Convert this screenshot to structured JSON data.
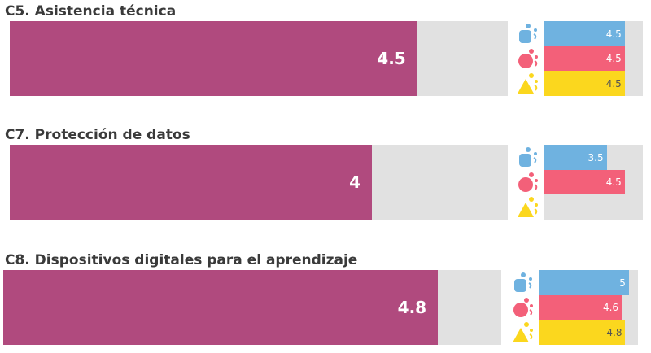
{
  "colors": {
    "overall": "#b04a7e",
    "track": "#e1e1e1",
    "teachers": "#6fb2e0",
    "students": "#f36079",
    "leaders": "#fbd71e",
    "overall_text": "#ffffff",
    "teachers_text": "#ffffff",
    "students_text": "#ffffff",
    "leaders_text": "#555555"
  },
  "icons": [
    "teachers-icon",
    "students-icon",
    "leaders-icon"
  ],
  "chart_data": [
    {
      "type": "bar",
      "title": "C5. Asistencia técnica",
      "overall": 4.5,
      "overall_label": "4.5",
      "xlim": [
        0,
        5.5
      ],
      "series": [
        {
          "key": "teachers",
          "value": 4.5,
          "label": "4.5"
        },
        {
          "key": "students",
          "value": 4.5,
          "label": "4.5"
        },
        {
          "key": "leaders",
          "value": 4.5,
          "label": "4.5"
        }
      ]
    },
    {
      "type": "bar",
      "title": "C7. Protección de datos",
      "overall": 4,
      "overall_label": "4",
      "xlim": [
        0,
        5.5
      ],
      "series": [
        {
          "key": "teachers",
          "value": 3.5,
          "label": "3.5"
        },
        {
          "key": "students",
          "value": 4.5,
          "label": "4.5"
        },
        {
          "key": "leaders",
          "value": null,
          "label": ""
        }
      ]
    },
    {
      "type": "bar",
      "title": "C8. Dispositivos digitales para el aprendizaje",
      "overall": 4.8,
      "overall_label": "4.8",
      "xlim": [
        0,
        5.5
      ],
      "series": [
        {
          "key": "teachers",
          "value": 5,
          "label": "5"
        },
        {
          "key": "students",
          "value": 4.6,
          "label": "4.6"
        },
        {
          "key": "leaders",
          "value": 4.8,
          "label": "4.8"
        }
      ]
    }
  ]
}
